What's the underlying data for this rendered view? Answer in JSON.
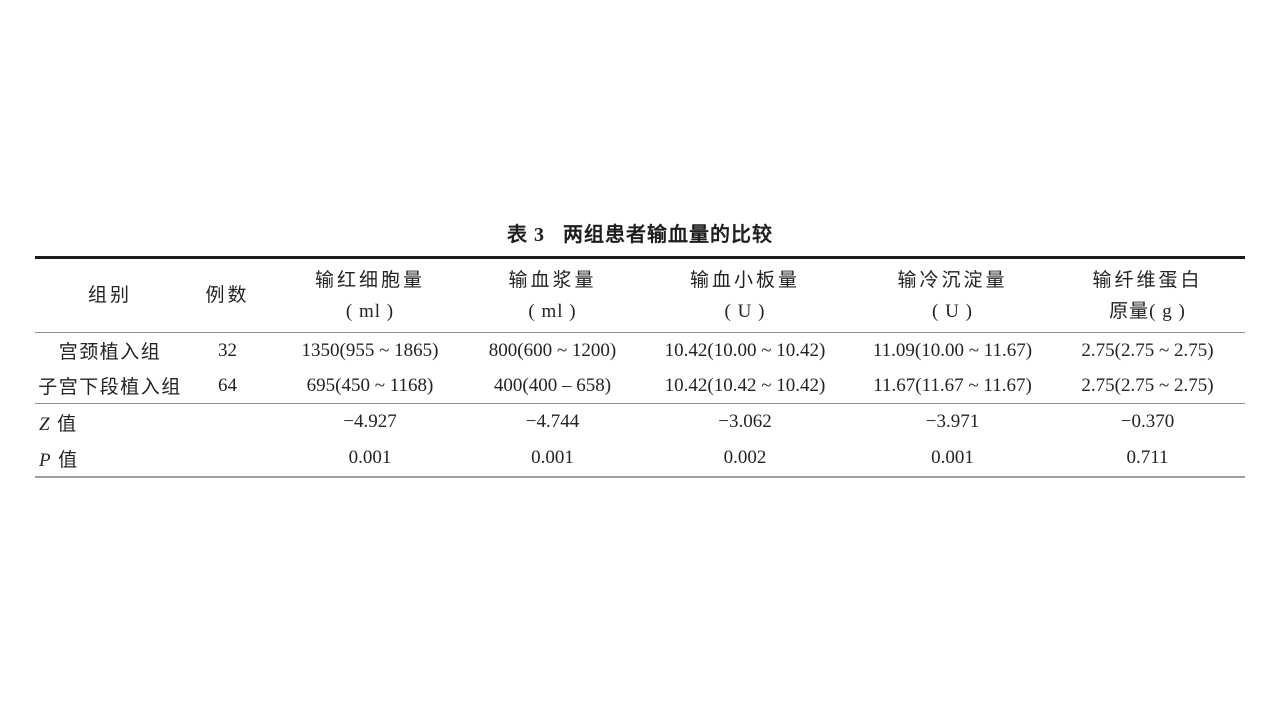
{
  "title": {
    "tag": "表 3",
    "text": "两组患者输血量的比较"
  },
  "columns": {
    "group": "组别",
    "cases": "例数",
    "rbc_line1": "输红细胞量",
    "rbc_line2": "( ml )",
    "plasma_line1": "输血浆量",
    "plasma_line2": "( ml )",
    "platelet_line1": "输血小板量",
    "platelet_line2": "( U )",
    "cryo_line1": "输冷沉淀量",
    "cryo_line2": "( U )",
    "fib_line1": "输纤维蛋白",
    "fib_line2": "原量( g )"
  },
  "rows": [
    {
      "group": "宫颈植入组",
      "cases": "32",
      "rbc": "1350(955 ~ 1865)",
      "plasma": "800(600 ~ 1200)",
      "platelet": "10.42(10.00 ~ 10.42)",
      "cryo": "11.09(10.00 ~ 11.67)",
      "fib": "2.75(2.75 ~ 2.75)"
    },
    {
      "group": "子宫下段植入组",
      "cases": "64",
      "rbc": "695(450 ~ 1168)",
      "plasma": "400(400 – 658)",
      "platelet": "10.42(10.42 ~ 10.42)",
      "cryo": "11.67(11.67 ~ 11.67)",
      "fib": "2.75(2.75 ~ 2.75)"
    }
  ],
  "stats": [
    {
      "letter": "Z",
      "word": "值",
      "rbc": "−4.927",
      "plasma": "−4.744",
      "platelet": "−3.062",
      "cryo": "−3.971",
      "fib": "−0.370"
    },
    {
      "letter": "P",
      "word": "值",
      "rbc": "0.001",
      "plasma": "0.001",
      "platelet": "0.002",
      "cryo": "0.001",
      "fib": "0.711"
    }
  ]
}
